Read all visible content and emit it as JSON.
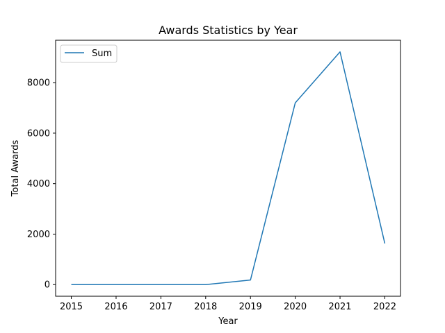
{
  "chart_data": {
    "type": "line",
    "title": "Awards Statistics by Year",
    "xlabel": "Year",
    "ylabel": "Total Awards",
    "x": [
      2015,
      2016,
      2017,
      2018,
      2019,
      2020,
      2021,
      2022
    ],
    "series": [
      {
        "name": "Sum",
        "values": [
          0,
          0,
          0,
          0,
          180,
          7200,
          9220,
          1630
        ],
        "color": "#1f77b4"
      }
    ],
    "xticks": [
      "2015",
      "2016",
      "2017",
      "2018",
      "2019",
      "2020",
      "2021",
      "2022"
    ],
    "yticks": [
      "0",
      "2000",
      "4000",
      "6000",
      "8000"
    ],
    "ytick_values": [
      0,
      2000,
      4000,
      6000,
      8000
    ],
    "xlim": [
      2014.65,
      2022.35
    ],
    "ylim": [
      -461,
      9681
    ],
    "legend": "top-left",
    "grid": false
  }
}
